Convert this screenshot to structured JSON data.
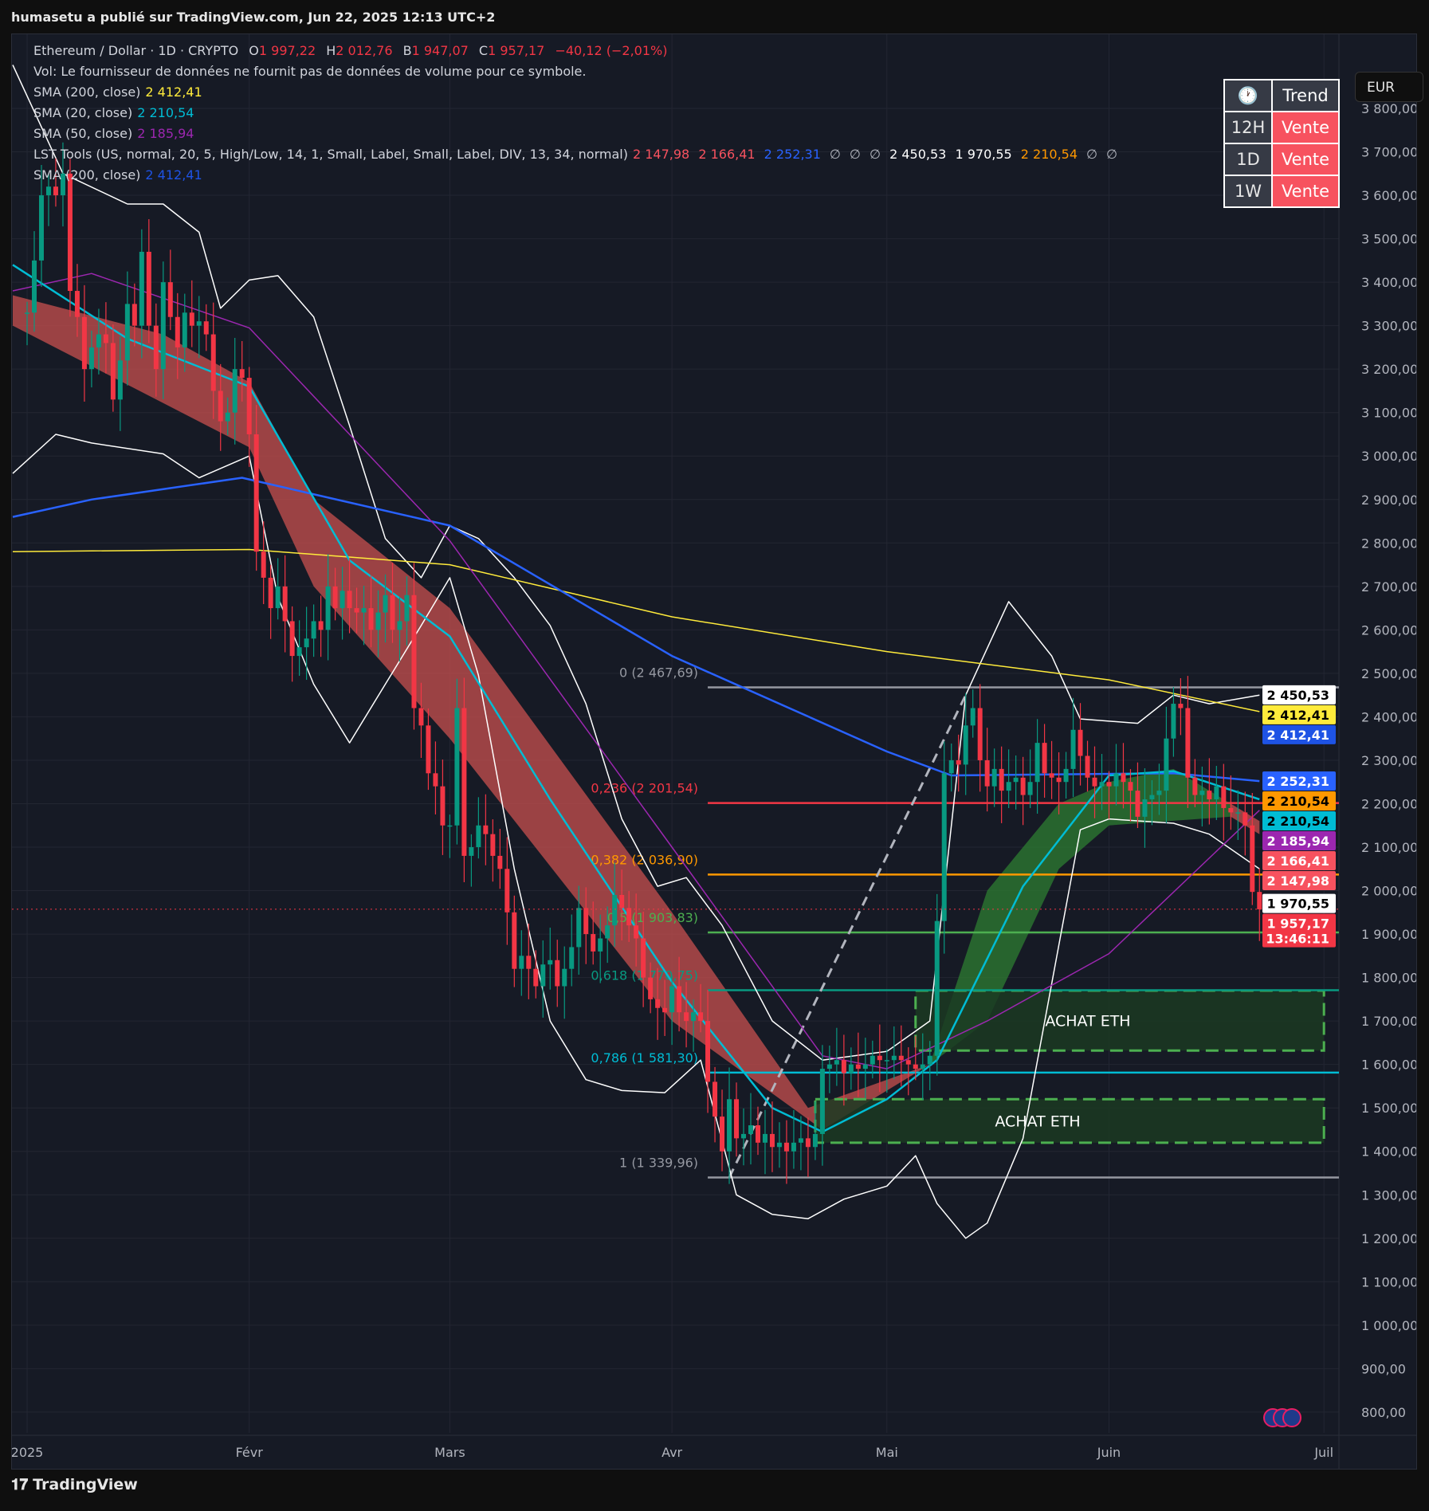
{
  "publisher": "humasetu a publié sur TradingView.com, Jun 22, 2025 12:13 UTC+2",
  "legend": {
    "symbol": "Ethereum / Dollar · 1D · CRYPTO",
    "o_label": "O",
    "o": "1 997,22",
    "h_label": "H",
    "h": "2 012,76",
    "b_label": "B",
    "b": "1 947,07",
    "c_label": "C",
    "c": "1 957,17",
    "change": "−40,12 (−2,01%)",
    "vol": "Vol: Le fournisseur de données ne fournit pas de données de volume pour ce symbole.",
    "indicators": [
      {
        "label": "SMA (200, close)",
        "values": [
          "2 412,41"
        ],
        "colors": [
          "#ffeb3b"
        ]
      },
      {
        "label": "SMA (20, close)",
        "values": [
          "2 210,54"
        ],
        "colors": [
          "#00bcd4"
        ]
      },
      {
        "label": "SMA (50, close)",
        "values": [
          "2 185,94"
        ],
        "colors": [
          "#9c27b0"
        ]
      },
      {
        "label": "LST Tools (US, normal, 20, 5, High/Low, 14, 1, Small, Label, Small, Label, DIV, 13, 34, normal)",
        "values": [
          "2 147,98",
          "2 166,41",
          "2 252,31",
          "∅",
          "∅",
          "∅",
          "2 450,53",
          "1 970,55",
          "2 210,54",
          "∅",
          "∅"
        ],
        "colors": [
          "#f7525f",
          "#f7525f",
          "#2962ff",
          "#b2b5be",
          "#b2b5be",
          "#b2b5be",
          "#ffffff",
          "#ffffff",
          "#ff9800",
          "#b2b5be",
          "#b2b5be"
        ]
      },
      {
        "label": "SMA (200, close)",
        "values": [
          "2 412,41"
        ],
        "colors": [
          "#1e53e5"
        ]
      }
    ]
  },
  "trend_table": {
    "header_icon": "clock-icon",
    "header": "Trend",
    "rows": [
      {
        "tf": "12H",
        "signal": "Vente"
      },
      {
        "tf": "1D",
        "signal": "Vente"
      },
      {
        "tf": "1W",
        "signal": "Vente"
      }
    ],
    "signal_color": "#f7525f"
  },
  "currency": "EUR",
  "footer": {
    "logo_icon": "tradingview-logo-icon",
    "brand": "TradingView"
  },
  "chart_data": {
    "type": "candlestick",
    "ylim": [
      750,
      3900
    ],
    "yticks": [
      "3 800,00",
      "3 700,00",
      "3 600,00",
      "3 500,00",
      "3 400,00",
      "3 300,00",
      "3 200,00",
      "3 100,00",
      "3 000,00",
      "2 900,00",
      "2 800,00",
      "2 700,00",
      "2 600,00",
      "2 500,00",
      "2 400,00",
      "2 300,00",
      "2 200,00",
      "2 100,00",
      "2 000,00",
      "1 900,00",
      "1 800,00",
      "1 700,00",
      "1 600,00",
      "1 500,00",
      "1 400,00",
      "1 300,00",
      "1 200,00",
      "1 100,00",
      "1 000,00",
      "900,00",
      "800,00"
    ],
    "xticks": [
      {
        "label": "2025",
        "date": "2025-01-01"
      },
      {
        "label": "Févr",
        "date": "2025-02-01"
      },
      {
        "label": "Mars",
        "date": "2025-03-01"
      },
      {
        "label": "Avr",
        "date": "2025-04-01"
      },
      {
        "label": "Mai",
        "date": "2025-05-01"
      },
      {
        "label": "Juin",
        "date": "2025-06-01"
      },
      {
        "label": "Juil",
        "date": "2025-07-01"
      }
    ],
    "colors": {
      "up": "#089981",
      "down": "#f23645",
      "sma200": "#ffeb3b",
      "sma200b": "#2962ff",
      "sma20": "#00bcd4",
      "sma50": "#9c27b0",
      "bands": "#ffffff",
      "cloud_bear": "#c8504f",
      "cloud_bull": "#2e7d32"
    },
    "daily_close": {
      "2024-12": [
        3330
      ],
      "2025-01": [
        3330,
        3450,
        3600,
        3620,
        3600,
        3650,
        3380,
        3320,
        3200,
        3250,
        3280,
        3260,
        3130,
        3220,
        3350,
        3300,
        3470,
        3300,
        3200,
        3400,
        3320,
        3250,
        3330,
        3300,
        3310,
        3280,
        3150,
        3080,
        3100,
        3200,
        3180
      ],
      "2025-02": [
        3050,
        2780,
        2720,
        2650,
        2700,
        2620,
        2540,
        2560,
        2580,
        2620,
        2600,
        2700,
        2650,
        2690,
        2650,
        2640,
        2650,
        2600,
        2640,
        2680,
        2600,
        2620,
        2680,
        2420,
        2380,
        2270,
        2240,
        2150
      ],
      "2025-03": [
        2150,
        2420,
        2080,
        2100,
        2150,
        2130,
        2080,
        2050,
        1950,
        1820,
        1850,
        1820,
        1780,
        1830,
        1840,
        1780,
        1820,
        1870,
        1960,
        1900,
        1860,
        1890,
        1920,
        1990,
        1960,
        1920,
        1890,
        1800,
        1750,
        1730,
        1720
      ],
      "2025-04": [
        1780,
        1720,
        1700,
        1720,
        1700,
        1560,
        1480,
        1400,
        1520,
        1430,
        1440,
        1460,
        1420,
        1440,
        1410,
        1420,
        1400,
        1420,
        1430,
        1410,
        1440,
        1590,
        1600,
        1610,
        1580,
        1600,
        1590,
        1600,
        1620,
        1610
      ],
      "2025-05": [
        1610,
        1620,
        1610,
        1600,
        1590,
        1600,
        1620,
        1930,
        2270,
        2300,
        2290,
        2380,
        2420,
        2300,
        2240,
        2280,
        2230,
        2250,
        2260,
        2220,
        2250,
        2340,
        2270,
        2260,
        2250,
        2280,
        2370,
        2310,
        2260,
        2240,
        2250
      ],
      "2025-06": [
        2240,
        2270,
        2250,
        2230,
        2170,
        2210,
        2220,
        2230,
        2350,
        2430,
        2420,
        2260,
        2220,
        2230,
        2210,
        2240,
        2190,
        2180,
        2180,
        2150,
        1997,
        1957
      ]
    },
    "lines": {
      "sma200_yellow": [
        [
          "2024-12-30",
          2780
        ],
        [
          "2025-02-01",
          2785
        ],
        [
          "2025-03-01",
          2750
        ],
        [
          "2025-04-01",
          2630
        ],
        [
          "2025-05-01",
          2550
        ],
        [
          "2025-06-01",
          2485
        ],
        [
          "2025-06-22",
          2412
        ]
      ],
      "sma200_blue": [
        [
          "2024-12-30",
          2860
        ],
        [
          "2025-01-10",
          2900
        ],
        [
          "2025-01-31",
          2950
        ],
        [
          "2025-03-01",
          2840
        ],
        [
          "2025-04-01",
          2540
        ],
        [
          "2025-05-01",
          2320
        ],
        [
          "2025-05-10",
          2265
        ],
        [
          "2025-06-10",
          2270
        ],
        [
          "2025-06-22",
          2252
        ]
      ],
      "sma20": [
        [
          "2024-12-30",
          3440
        ],
        [
          "2025-01-15",
          3270
        ],
        [
          "2025-02-01",
          3160
        ],
        [
          "2025-02-15",
          2760
        ],
        [
          "2025-03-01",
          2585
        ],
        [
          "2025-03-15",
          2210
        ],
        [
          "2025-04-01",
          1790
        ],
        [
          "2025-04-15",
          1500
        ],
        [
          "2025-04-22",
          1445
        ],
        [
          "2025-05-01",
          1520
        ],
        [
          "2025-05-08",
          1610
        ],
        [
          "2025-05-20",
          2010
        ],
        [
          "2025-06-01",
          2265
        ],
        [
          "2025-06-10",
          2275
        ],
        [
          "2025-06-22",
          2210
        ]
      ],
      "sma50": [
        [
          "2024-12-30",
          3380
        ],
        [
          "2025-01-10",
          3420
        ],
        [
          "2025-02-01",
          3295
        ],
        [
          "2025-03-01",
          2805
        ],
        [
          "2025-04-01",
          2100
        ],
        [
          "2025-04-22",
          1620
        ],
        [
          "2025-05-01",
          1590
        ],
        [
          "2025-05-15",
          1700
        ],
        [
          "2025-06-01",
          1855
        ],
        [
          "2025-06-22",
          2185
        ]
      ],
      "band_upper": [
        [
          "2024-12-30",
          3900
        ],
        [
          "2025-01-06",
          3650
        ],
        [
          "2025-01-15",
          3580
        ],
        [
          "2025-01-20",
          3580
        ],
        [
          "2025-01-25",
          3515
        ],
        [
          "2025-01-28",
          3340
        ],
        [
          "2025-02-01",
          3405
        ],
        [
          "2025-02-05",
          3415
        ],
        [
          "2025-02-10",
          3320
        ],
        [
          "2025-02-15",
          3070
        ],
        [
          "2025-02-20",
          2810
        ],
        [
          "2025-02-25",
          2720
        ],
        [
          "2025-03-01",
          2840
        ],
        [
          "2025-03-05",
          2810
        ],
        [
          "2025-03-10",
          2720
        ],
        [
          "2025-03-15",
          2610
        ],
        [
          "2025-03-20",
          2430
        ],
        [
          "2025-03-25",
          2165
        ],
        [
          "2025-03-30",
          2010
        ],
        [
          "2025-04-03",
          2030
        ],
        [
          "2025-04-08",
          1920
        ],
        [
          "2025-04-15",
          1700
        ],
        [
          "2025-04-22",
          1610
        ],
        [
          "2025-05-01",
          1630
        ],
        [
          "2025-05-07",
          1700
        ],
        [
          "2025-05-12",
          2450
        ],
        [
          "2025-05-18",
          2665
        ],
        [
          "2025-05-24",
          2540
        ],
        [
          "2025-05-28",
          2395
        ],
        [
          "2025-06-05",
          2385
        ],
        [
          "2025-06-10",
          2450
        ],
        [
          "2025-06-15",
          2430
        ],
        [
          "2025-06-22",
          2450
        ]
      ],
      "band_lower": [
        [
          "2024-12-30",
          2960
        ],
        [
          "2025-01-05",
          3050
        ],
        [
          "2025-01-10",
          3030
        ],
        [
          "2025-01-20",
          3005
        ],
        [
          "2025-01-25",
          2950
        ],
        [
          "2025-02-01",
          3000
        ],
        [
          "2025-02-05",
          2675
        ],
        [
          "2025-02-10",
          2475
        ],
        [
          "2025-02-15",
          2340
        ],
        [
          "2025-02-20",
          2475
        ],
        [
          "2025-02-25",
          2610
        ],
        [
          "2025-03-01",
          2720
        ],
        [
          "2025-03-05",
          2495
        ],
        [
          "2025-03-10",
          2050
        ],
        [
          "2025-03-15",
          1700
        ],
        [
          "2025-03-20",
          1565
        ],
        [
          "2025-03-25",
          1540
        ],
        [
          "2025-03-31",
          1535
        ],
        [
          "2025-04-05",
          1610
        ],
        [
          "2025-04-10",
          1300
        ],
        [
          "2025-04-15",
          1255
        ],
        [
          "2025-04-20",
          1245
        ],
        [
          "2025-04-25",
          1290
        ],
        [
          "2025-05-01",
          1320
        ],
        [
          "2025-05-05",
          1390
        ],
        [
          "2025-05-08",
          1280
        ],
        [
          "2025-05-12",
          1200
        ],
        [
          "2025-05-15",
          1235
        ],
        [
          "2025-05-20",
          1430
        ],
        [
          "2025-05-25",
          1875
        ],
        [
          "2025-05-28",
          2140
        ],
        [
          "2025-06-01",
          2165
        ],
        [
          "2025-06-10",
          2155
        ],
        [
          "2025-06-15",
          2130
        ],
        [
          "2025-06-22",
          2050
        ]
      ]
    },
    "clouds": [
      {
        "trend": "bear",
        "top": [
          [
            "2024-12-30",
            3370
          ],
          [
            "2025-01-20",
            3280
          ],
          [
            "2025-02-01",
            3170
          ],
          [
            "2025-02-10",
            2900
          ],
          [
            "2025-03-01",
            2650
          ],
          [
            "2025-04-01",
            1950
          ],
          [
            "2025-04-20",
            1500
          ],
          [
            "2025-05-07",
            1600
          ]
        ],
        "bottom": [
          [
            "2024-12-30",
            3300
          ],
          [
            "2025-02-01",
            3020
          ],
          [
            "2025-02-10",
            2700
          ],
          [
            "2025-03-01",
            2350
          ],
          [
            "2025-04-01",
            1700
          ],
          [
            "2025-04-22",
            1450
          ],
          [
            "2025-05-07",
            1600
          ]
        ]
      },
      {
        "trend": "bull",
        "top": [
          [
            "2025-05-07",
            1600
          ],
          [
            "2025-05-15",
            2000
          ],
          [
            "2025-05-25",
            2200
          ],
          [
            "2025-06-01",
            2250
          ],
          [
            "2025-06-10",
            2280
          ],
          [
            "2025-06-18",
            2200
          ]
        ],
        "bottom": [
          [
            "2025-05-07",
            1600
          ],
          [
            "2025-05-15",
            1700
          ],
          [
            "2025-05-25",
            2050
          ],
          [
            "2025-06-01",
            2150
          ],
          [
            "2025-06-18",
            2170
          ]
        ]
      },
      {
        "trend": "bear",
        "top": [
          [
            "2025-06-18",
            2200
          ],
          [
            "2025-06-22",
            2160
          ]
        ],
        "bottom": [
          [
            "2025-06-18",
            2170
          ],
          [
            "2025-06-22",
            2130
          ]
        ]
      }
    ],
    "fib_start": "2025-04-06",
    "fib_levels": [
      {
        "label": "0 (2 467,69)",
        "price": 2467.69,
        "color": "#9598a1"
      },
      {
        "label": "0,236 (2 201,54)",
        "price": 2201.54,
        "color": "#f23645"
      },
      {
        "label": "0,382 (2 036,90)",
        "price": 2036.9,
        "color": "#ff9800"
      },
      {
        "label": "0,5 (1 903,83)",
        "price": 1903.83,
        "color": "#4caf50"
      },
      {
        "label": "0,618 (1 770,75)",
        "price": 1770.75,
        "color": "#089981"
      },
      {
        "label": "0,786 (1 581,30)",
        "price": 1581.3,
        "color": "#00bcd4"
      },
      {
        "label": "1 (1 339,96)",
        "price": 1339.96,
        "color": "#9598a1"
      }
    ],
    "zones": [
      {
        "label": "ACHAT ETH",
        "from": "2025-05-05",
        "to": "2025-07-01",
        "top": 1770,
        "bottom": 1632
      },
      {
        "label": "ACHAT ETH",
        "from": "2025-04-21",
        "to": "2025-07-01",
        "top": 1520,
        "bottom": 1420
      }
    ],
    "trendline": [
      [
        "2025-04-09",
        1340
      ],
      [
        "2025-05-12",
        2450
      ]
    ],
    "last_price": 1957.17,
    "price_badges": [
      {
        "text": "2 450,53",
        "price": 2450.53,
        "bg": "#ffffff",
        "fg": "#000000"
      },
      {
        "text": "2 412,41",
        "price": 2412.41,
        "bg": "#ffeb3b",
        "fg": "#000000"
      },
      {
        "text": "2 412,41",
        "price": 2412.41,
        "bg": "#1e53e5",
        "fg": "#ffffff"
      },
      {
        "text": "2 252,31",
        "price": 2252.31,
        "bg": "#2962ff",
        "fg": "#ffffff"
      },
      {
        "text": "2 210,54",
        "price": 2210.54,
        "bg": "#ff9800",
        "fg": "#000000"
      },
      {
        "text": "2 210,54",
        "price": 2210.54,
        "bg": "#00bcd4",
        "fg": "#000000"
      },
      {
        "text": "2 185,94",
        "price": 2185.94,
        "bg": "#9c27b0",
        "fg": "#ffffff"
      },
      {
        "text": "2 166,41",
        "price": 2166.41,
        "bg": "#f7525f",
        "fg": "#ffffff"
      },
      {
        "text": "2 147,98",
        "price": 2147.98,
        "bg": "#f7525f",
        "fg": "#ffffff"
      },
      {
        "text": "1 970,55",
        "price": 1970.55,
        "bg": "#ffffff",
        "fg": "#000000"
      },
      {
        "text": "1 957,17",
        "sub": "13:46:11",
        "price": 1957.17,
        "bg": "#f23645",
        "fg": "#ffffff"
      }
    ]
  }
}
